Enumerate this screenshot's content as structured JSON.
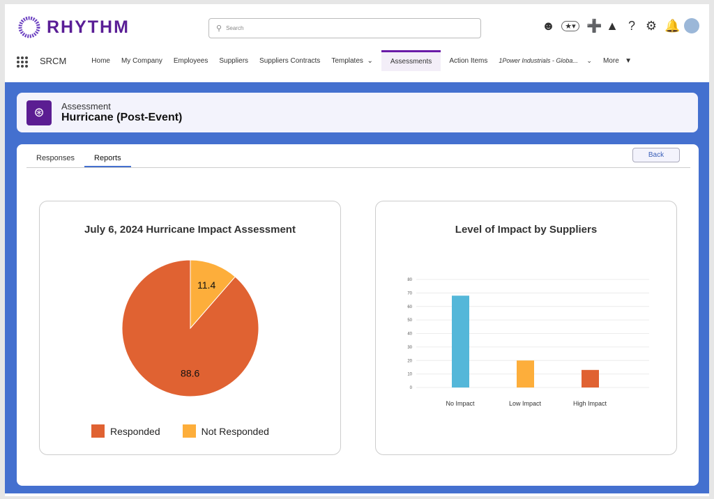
{
  "brand": {
    "name": "RHYTHM"
  },
  "search": {
    "placeholder": "Search"
  },
  "header_icons": [
    "agent-icon",
    "favorites-icon",
    "add-icon",
    "trailhead-icon",
    "help-icon",
    "settings-icon",
    "bell-icon",
    "avatar"
  ],
  "nav": {
    "app": "SRCM",
    "items": [
      "Home",
      "My Company",
      "Employees",
      "Suppliers",
      "Suppliers Contracts",
      "Templates",
      "Assessments",
      "Action Items",
      "1Power Industrials - Globa...",
      "More"
    ],
    "active": "Assessments"
  },
  "record": {
    "object": "Assessment",
    "title": "Hurricane (Post-Event)"
  },
  "tabs": {
    "items": [
      "Responses",
      "Reports"
    ],
    "active": "Reports"
  },
  "back_label": "Back",
  "colors": {
    "responded": "#e06232",
    "not_responded": "#fdae3b",
    "no_impact": "#54b7d9",
    "accent": "#4470cf"
  },
  "chart_data": [
    {
      "type": "pie",
      "title": "July 6, 2024 Hurricane Impact Assessment",
      "slices": [
        {
          "name": "Not Responded",
          "value": 11.4
        },
        {
          "name": "Responded",
          "value": 88.6
        }
      ],
      "legend": [
        "Responded",
        "Not Responded"
      ],
      "legend_position": "bottom"
    },
    {
      "type": "bar",
      "title": "Level of Impact by Suppliers",
      "categories": [
        "No Impact",
        "Low Impact",
        "High Impact"
      ],
      "values": [
        68,
        20,
        13
      ],
      "ylim": [
        0,
        80
      ],
      "yticks": [
        0,
        10,
        20,
        30,
        40,
        50,
        60,
        70,
        80
      ],
      "grid": true
    }
  ]
}
